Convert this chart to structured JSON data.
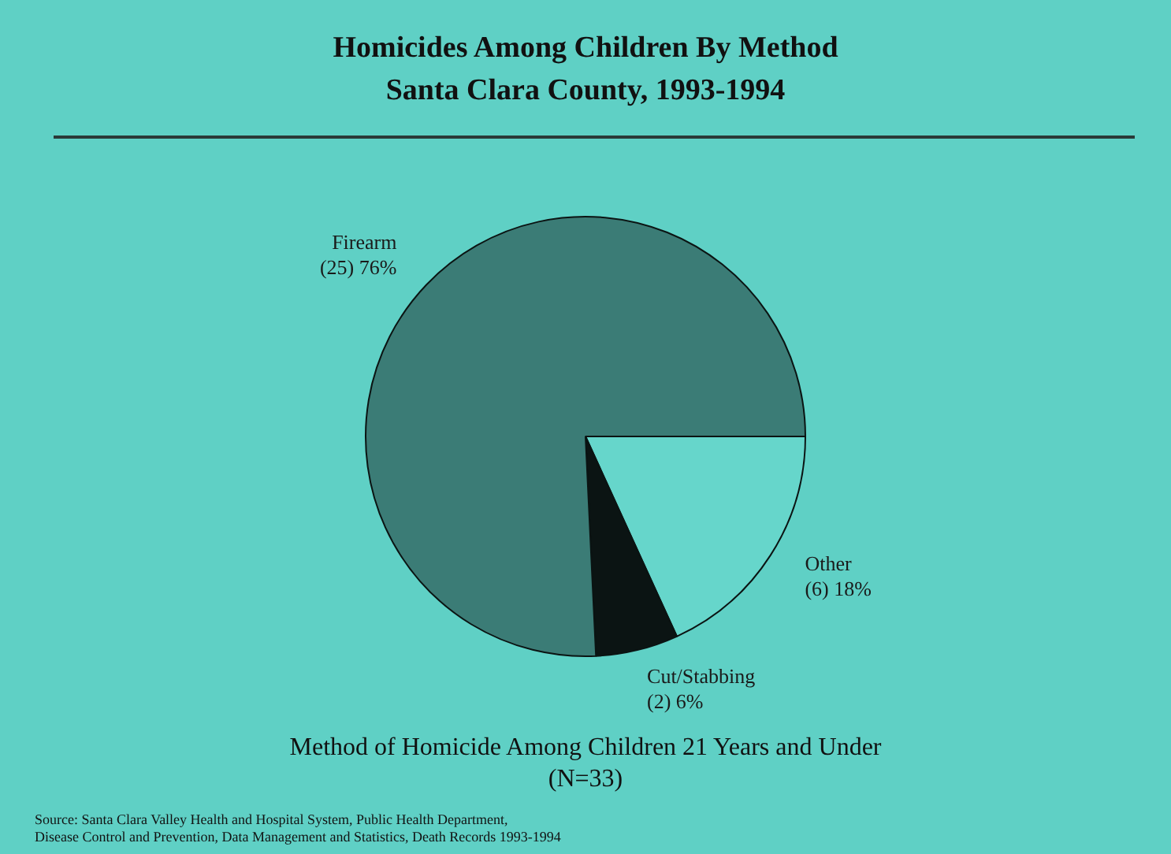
{
  "chart_data": {
    "type": "pie",
    "title": "Homicides Among Children By Method",
    "subtitle": "Santa Clara County, 1993-1994",
    "categories": [
      "Other",
      "Cut/Stabbing",
      "Firearm"
    ],
    "values": [
      6,
      2,
      25
    ],
    "value_labels": [
      "(6) 18%",
      "(2) 6%",
      "(25) 76%"
    ],
    "colors": [
      "#66d6cb",
      "#0b1413",
      "#3b7c76"
    ],
    "legend": false,
    "annotations": [
      "Method of Homicide Among Children 21 Years and Under",
      "(N=33)",
      "Source: Santa Clara Valley Health and Hospital System, Public Health Department,",
      "Disease Control and Prevention, Data Management and Statistics, Death Records 1993-1994"
    ]
  }
}
